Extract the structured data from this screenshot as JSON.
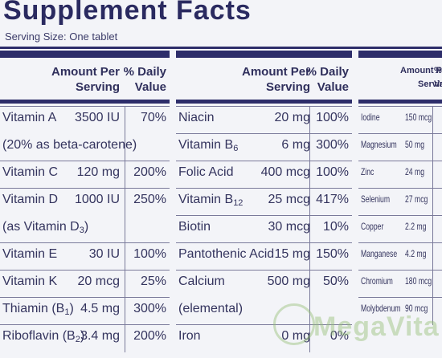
{
  "title": "Supplement Facts",
  "serving": "Serving Size: One tablet",
  "headers": {
    "amount_line1": "Amount Per",
    "amount_line2": "Serving",
    "dv_line1": "% Daily",
    "dv_line2": "Value",
    "c3_amount_line1": "Amount Per",
    "c3_amount_line2": "Serving",
    "c3_dv_line1": "% Da",
    "c3_dv_line2": "Va"
  },
  "col1": [
    {
      "name": "Vitamin A",
      "amount": "3500 IU",
      "dv": "70%"
    },
    {
      "name": "(20% as beta-carotene)",
      "amount": "",
      "dv": ""
    },
    {
      "name": "Vitamin C",
      "amount": "120 mg",
      "dv": "200%"
    },
    {
      "name": "Vitamin D",
      "amount": "1000 IU",
      "dv": "250%"
    },
    {
      "name": "(as Vitamin D",
      "sub": "3",
      "name_end": ")",
      "amount": "",
      "dv": ""
    },
    {
      "name": "Vitamin E",
      "amount": "30 IU",
      "dv": "100%"
    },
    {
      "name": "Vitamin K",
      "amount": "20 mcg",
      "dv": "25%"
    },
    {
      "name": "Thiamin (B",
      "sub": "1",
      "name_end": ")",
      "amount": "4.5 mg",
      "dv": "300%"
    },
    {
      "name": "Riboflavin (B",
      "sub": "2",
      "name_end": ")",
      "amount": "3.4 mg",
      "dv": "200%"
    }
  ],
  "col2": [
    {
      "name": "Niacin",
      "amount": "20 mg",
      "dv": "100%"
    },
    {
      "name": "Vitamin B",
      "sub": "6",
      "amount": "6 mg",
      "dv": "300%"
    },
    {
      "name": "Folic Acid",
      "amount": "400 mcg",
      "dv": "100%"
    },
    {
      "name": "Vitamin B",
      "sub": "12",
      "amount": "25 mcg",
      "dv": "417%"
    },
    {
      "name": "Biotin",
      "amount": "30 mcg",
      "dv": "10%"
    },
    {
      "name": "Pantothenic Acid",
      "amount": "15 mg",
      "dv": "150%"
    },
    {
      "name": "Calcium",
      "amount": "500 mg",
      "dv": "50%"
    },
    {
      "name": "(elemental)",
      "amount": "",
      "dv": ""
    },
    {
      "name": "Iron",
      "amount": "0 mg",
      "dv": "0%"
    }
  ],
  "col3": [
    {
      "name": "Iodine",
      "amount": "150 mcg"
    },
    {
      "name": "Magnesium",
      "amount": "50 mg"
    },
    {
      "name": "Zinc",
      "amount": "24 mg"
    },
    {
      "name": "Selenium",
      "amount": "27 mcg"
    },
    {
      "name": "Copper",
      "amount": "2.2 mg"
    },
    {
      "name": "Manganese",
      "amount": "4.2 mg"
    },
    {
      "name": "Chromium",
      "amount": "180 mcg"
    },
    {
      "name": "Molybdenum",
      "amount": "90 mcg"
    }
  ],
  "watermark": "MegaVita"
}
